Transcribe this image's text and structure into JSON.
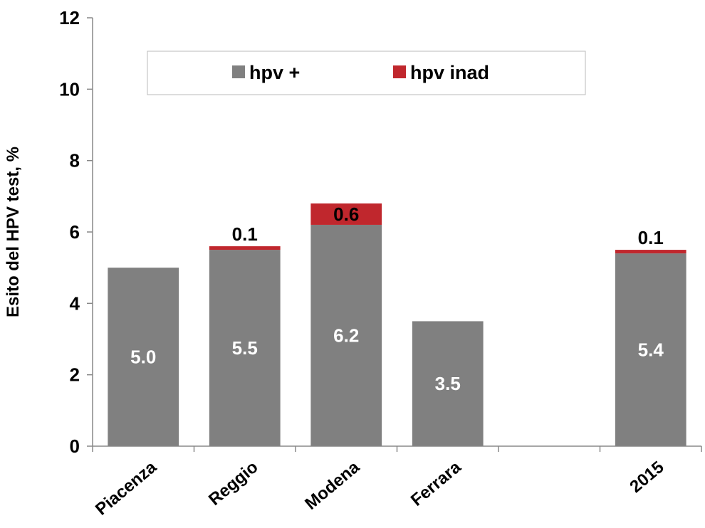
{
  "chart_data": {
    "type": "bar",
    "stacked": true,
    "categories": [
      "Piacenza",
      "Reggio",
      "Modena",
      "Ferrara",
      "",
      "2015"
    ],
    "series": [
      {
        "name": "hpv +",
        "color": "#808080",
        "values": [
          5.0,
          5.5,
          6.2,
          3.5,
          null,
          5.4
        ],
        "labels": [
          "5.0",
          "5.5",
          "6.2",
          "3.5",
          "",
          "5.4"
        ]
      },
      {
        "name": "hpv inad",
        "color": "#c0272d",
        "values": [
          0,
          0.1,
          0.6,
          0,
          null,
          0.1
        ],
        "labels": [
          "",
          "0.1",
          "0.6",
          "",
          "",
          "0.1"
        ]
      }
    ],
    "title": "",
    "xlabel": "",
    "ylabel": "Esito del HPV test, %",
    "ylim": [
      0,
      12
    ],
    "yticks": [
      "0",
      "2",
      "4",
      "6",
      "8",
      "10",
      "12"
    ],
    "grid": false,
    "legend_position": "top"
  }
}
